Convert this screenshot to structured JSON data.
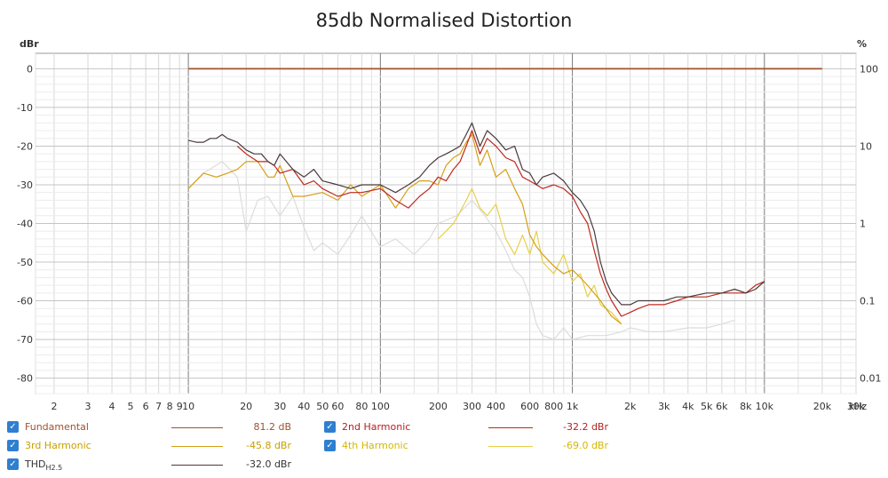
{
  "chart_data": {
    "type": "line",
    "title": "85db Normalised Distortion",
    "y_left_unit": "dBr",
    "y_right_unit": "%",
    "x_unit": "kHz",
    "x_scale": "log",
    "xlim": [
      1.6,
      30000
    ],
    "ylim": [
      -84,
      4
    ],
    "grid": true,
    "y_left_ticks": [
      "0",
      "-10",
      "-20",
      "-30",
      "-40",
      "-50",
      "-60",
      "-70",
      "-80"
    ],
    "y_right_ticks": [
      "100",
      "10",
      "1",
      "0.1",
      "0.01"
    ],
    "x_ticks": [
      "2",
      "3",
      "4",
      "5",
      "6",
      "7",
      "8",
      "9",
      "10",
      "20",
      "30",
      "40",
      "50",
      "60",
      "80",
      "100",
      "200",
      "300",
      "400",
      "600",
      "800",
      "1k",
      "2k",
      "3k",
      "4k",
      "5k",
      "6k",
      "8k",
      "10k",
      "20k",
      "30k"
    ],
    "series": [
      {
        "name": "Fundamental",
        "color": "#a0522d",
        "value_text": "81.2 dB",
        "x": [
          10,
          20000
        ],
        "y": [
          0,
          0
        ]
      },
      {
        "name": "2nd Harmonic",
        "color": "#c0281e",
        "value_text": "-32.2 dBr",
        "x": [
          18,
          20,
          23,
          26,
          28,
          30,
          35,
          40,
          45,
          50,
          60,
          70,
          80,
          100,
          120,
          140,
          160,
          180,
          200,
          220,
          240,
          260,
          280,
          300,
          330,
          360,
          400,
          450,
          500,
          550,
          600,
          650,
          700,
          800,
          900,
          1000,
          1100,
          1200,
          1300,
          1400,
          1500,
          1600,
          1800,
          2000,
          2200,
          2500,
          3000,
          3500,
          4000,
          5000,
          6000,
          7000,
          8000,
          9000,
          10000
        ],
        "y": [
          -20,
          -22,
          -24,
          -24,
          -25,
          -27,
          -26,
          -30,
          -29,
          -31,
          -33,
          -32,
          -32,
          -31,
          -34,
          -36,
          -33,
          -31,
          -28,
          -29,
          -26,
          -24,
          -20,
          -16,
          -22,
          -18,
          -20,
          -23,
          -24,
          -28,
          -29,
          -30,
          -31,
          -30,
          -31,
          -33,
          -37,
          -40,
          -47,
          -53,
          -57,
          -60,
          -64,
          -63,
          -62,
          -61,
          -61,
          -60,
          -59,
          -59,
          -58,
          -58,
          -58,
          -56,
          -55
        ]
      },
      {
        "name": "3rd Harmonic",
        "color": "#d4a017",
        "value_text": "-45.8 dBr",
        "x": [
          10,
          12,
          14,
          16,
          18,
          20,
          23,
          26,
          28,
          30,
          35,
          40,
          50,
          60,
          70,
          80,
          100,
          120,
          140,
          160,
          180,
          200,
          220,
          240,
          260,
          280,
          300,
          330,
          360,
          400,
          450,
          500,
          550,
          600,
          650,
          700,
          800,
          900,
          1000,
          1100,
          1200,
          1400,
          1600,
          1800
        ],
        "y": [
          -31,
          -27,
          -28,
          -27,
          -26,
          -24,
          -24,
          -28,
          -28,
          -25,
          -33,
          -33,
          -32,
          -34,
          -30,
          -33,
          -30,
          -36,
          -31,
          -29,
          -29,
          -30,
          -25,
          -23,
          -22,
          -19,
          -17,
          -25,
          -21,
          -28,
          -26,
          -31,
          -35,
          -43,
          -46,
          -48,
          -51,
          -53,
          -52,
          -54,
          -56,
          -60,
          -64,
          -66
        ]
      },
      {
        "name": "4th Harmonic",
        "color": "#e8cf4a",
        "value_text": "-69.0 dBr",
        "x": [
          200,
          220,
          240,
          260,
          280,
          300,
          330,
          360,
          400,
          450,
          500,
          550,
          600,
          650,
          700,
          800,
          900,
          1000,
          1100,
          1200,
          1300,
          1400,
          1600,
          1800
        ],
        "y": [
          -44,
          -42,
          -40,
          -37,
          -34,
          -31,
          -36,
          -38,
          -35,
          -44,
          -48,
          -43,
          -48,
          -42,
          -50,
          -53,
          -48,
          -55,
          -53,
          -59,
          -56,
          -61,
          -63,
          -66
        ]
      },
      {
        "name": "THD",
        "name_sub": "H2.5",
        "color": "#4a3a3a",
        "value_text": "-32.0 dBr",
        "x": [
          10,
          11,
          12,
          13,
          14,
          15,
          16,
          18,
          20,
          22,
          24,
          26,
          28,
          30,
          35,
          40,
          45,
          50,
          60,
          70,
          80,
          100,
          120,
          140,
          160,
          180,
          200,
          220,
          240,
          260,
          280,
          300,
          330,
          360,
          400,
          450,
          500,
          550,
          600,
          650,
          700,
          800,
          900,
          1000,
          1100,
          1200,
          1300,
          1400,
          1500,
          1600,
          1800,
          2000,
          2200,
          2500,
          3000,
          3500,
          4000,
          5000,
          6000,
          7000,
          8000,
          9000,
          10000
        ],
        "y": [
          -18.5,
          -19,
          -19,
          -18,
          -18,
          -17,
          -18,
          -19,
          -21,
          -22,
          -22,
          -24,
          -25,
          -22,
          -26,
          -28,
          -26,
          -29,
          -30,
          -31,
          -30,
          -30,
          -32,
          -30,
          -28,
          -25,
          -23,
          -22,
          -21,
          -20,
          -17,
          -14,
          -20,
          -16,
          -18,
          -21,
          -20,
          -26,
          -27,
          -30,
          -28,
          -27,
          -29,
          -32,
          -34,
          -37,
          -42,
          -50,
          -55,
          -58,
          -61,
          -61,
          -60,
          -60,
          -60,
          -59,
          -59,
          -58,
          -58,
          -57,
          -58,
          -57,
          -55
        ]
      },
      {
        "name": "(unlabelled trace)",
        "color": "#dcdcdc",
        "x": [
          10,
          12,
          15,
          18,
          20,
          23,
          26,
          30,
          35,
          40,
          45,
          50,
          60,
          70,
          80,
          100,
          120,
          150,
          180,
          200,
          250,
          300,
          350,
          400,
          450,
          500,
          550,
          600,
          650,
          700,
          800,
          900,
          1000,
          1200,
          1500,
          1800,
          2000,
          2500,
          3000,
          4000,
          5000,
          6000,
          7000
        ],
        "y": [
          -31,
          -27,
          -24,
          -28,
          -42,
          -34,
          -33,
          -38,
          -33,
          -41,
          -47,
          -45,
          -48,
          -43,
          -38,
          -46,
          -44,
          -48,
          -44,
          -40,
          -38,
          -34,
          -38,
          -42,
          -47,
          -52,
          -54,
          -59,
          -66,
          -69,
          -70,
          -67,
          -70,
          -69,
          -69,
          -68,
          -67,
          -68,
          -68,
          -67,
          -67,
          -66,
          -65
        ]
      }
    ]
  },
  "legend": {
    "fundamental": {
      "label": "Fundamental",
      "value": "81.2 dB",
      "color": "#a0522d",
      "line": "#a0522d"
    },
    "h2": {
      "label": "2nd Harmonic",
      "value": "-32.2 dBr",
      "color": "#b22222",
      "line": "#c0281e"
    },
    "h3": {
      "label": "3rd Harmonic",
      "value": "-45.8 dBr",
      "color": "#c9a000",
      "line": "#d4a017"
    },
    "h4": {
      "label": "4th Harmonic",
      "value": "-69.0 dBr",
      "color": "#d4b800",
      "line": "#e8cf4a"
    },
    "thd": {
      "label": "THD",
      "sub": "H2.5",
      "value": "-32.0 dBr",
      "color": "#333333",
      "line": "#4a3a3a"
    }
  }
}
